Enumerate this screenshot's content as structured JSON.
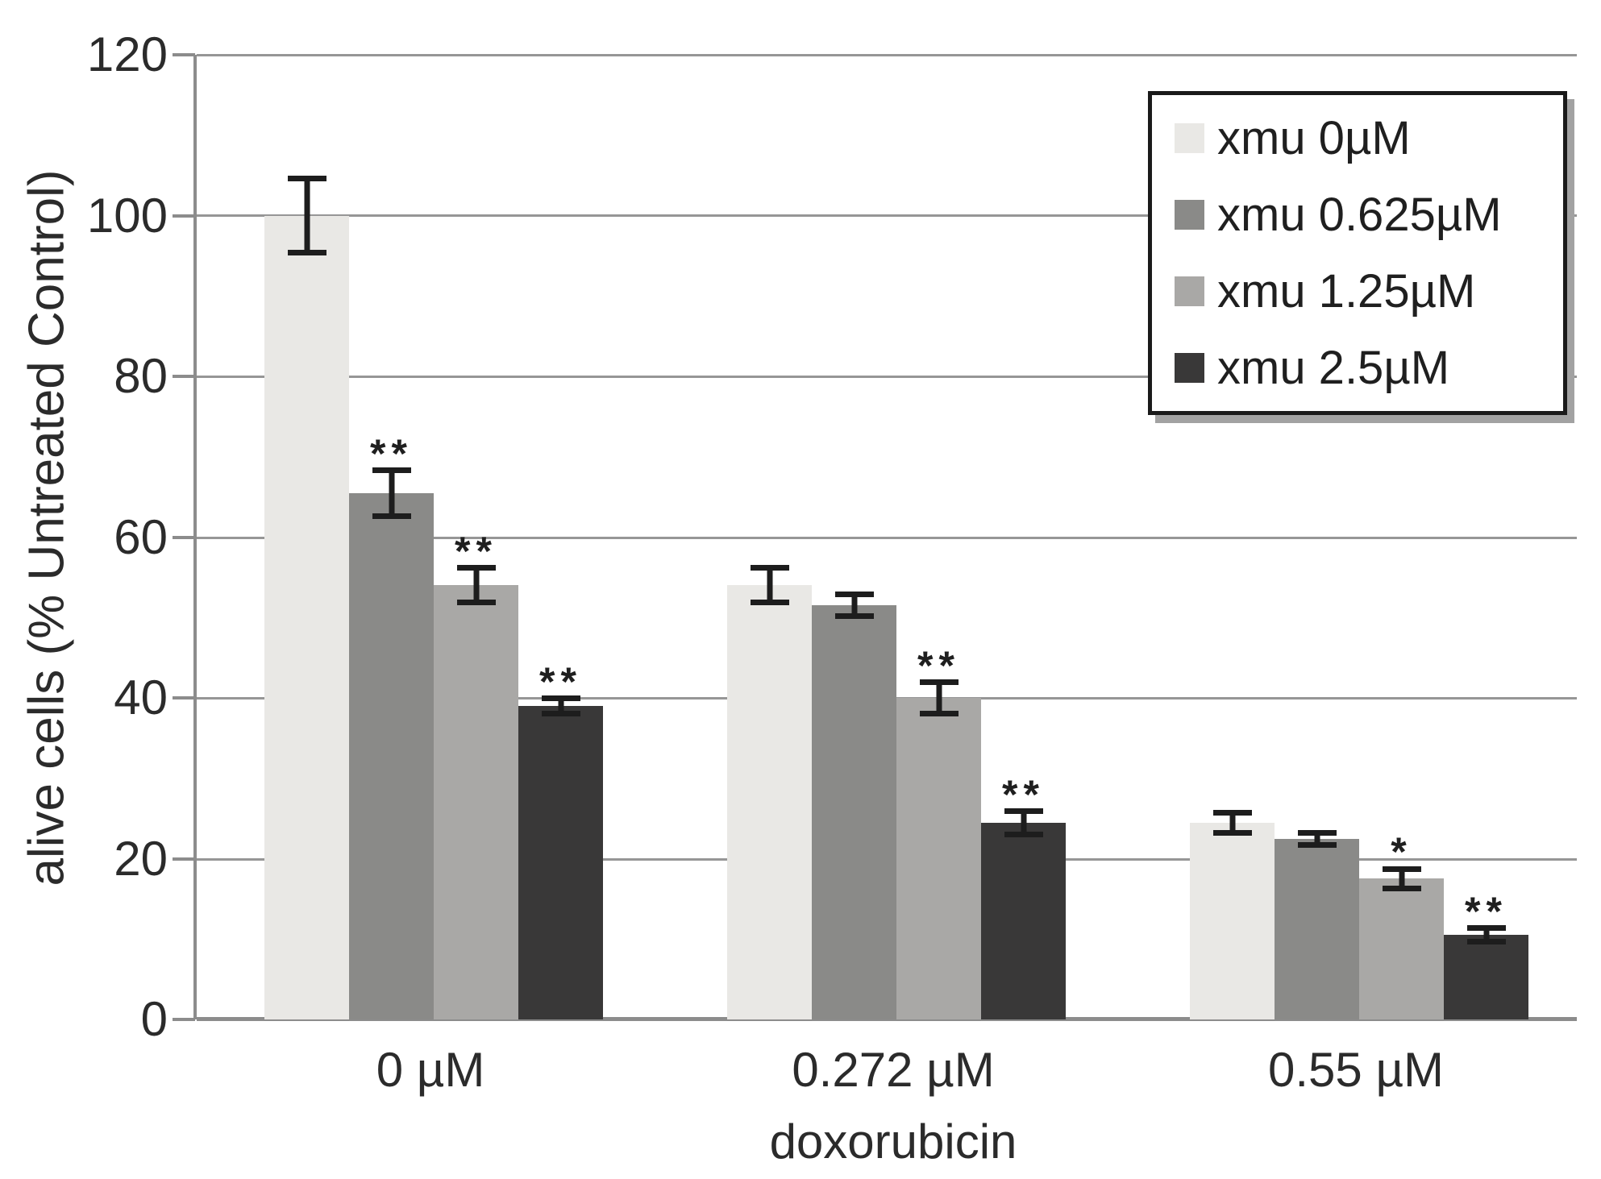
{
  "chart_data": {
    "type": "bar",
    "title": "",
    "ylabel": "alive cells (% Untreated Control)",
    "xlabel": "doxorubicin",
    "ylim": [
      0,
      120
    ],
    "yticks": [
      0,
      20,
      40,
      60,
      80,
      100,
      120
    ],
    "grid": true,
    "legend_position": "top-right-inside",
    "categories": [
      "0 µM",
      "0.272 µM",
      "0.55 µM"
    ],
    "series": [
      {
        "name": "xmu 0µM",
        "color": "#e9e8e5",
        "values": [
          100,
          54,
          24.5
        ],
        "errors": [
          5,
          2.5,
          1.6
        ],
        "significance": [
          "",
          "",
          ""
        ]
      },
      {
        "name": "xmu 0.625µM",
        "color": "#8a8a88",
        "values": [
          65.5,
          51.5,
          22.5
        ],
        "errors": [
          3.2,
          1.7,
          1.1
        ],
        "significance": [
          "**",
          "",
          ""
        ]
      },
      {
        "name": "xmu 1.25µM",
        "color": "#a9a8a6",
        "values": [
          54,
          40,
          17.5
        ],
        "errors": [
          2.5,
          2.3,
          1.6
        ],
        "significance": [
          "**",
          "**",
          "*"
        ]
      },
      {
        "name": "xmu 2.5µM",
        "color": "#393838",
        "values": [
          39,
          24.5,
          10.5
        ],
        "errors": [
          1.3,
          1.8,
          1.2
        ],
        "significance": [
          "**",
          "**",
          "**"
        ]
      }
    ],
    "colors": {
      "grid": "#969696",
      "axis": "#8c8c8c",
      "error_bar": "#1d1d1d",
      "text": "#2b2b2b",
      "legend_border": "#1a1a1a",
      "background": "#ffffff"
    }
  }
}
